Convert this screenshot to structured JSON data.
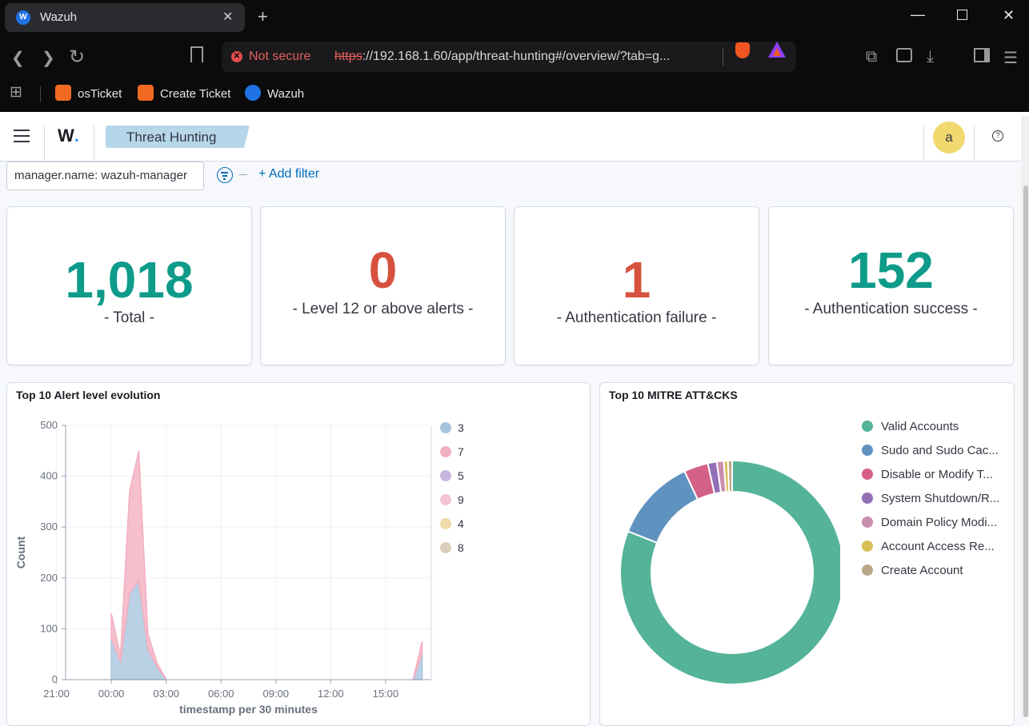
{
  "browser": {
    "tab_title": "Wazuh",
    "tab_favicon_letter": "W",
    "security_label": "Not secure",
    "url_scheme": "https",
    "url_rest": "://192.168.1.60/app/threat-hunting#/overview/?tab=g...",
    "bookmarks": [
      {
        "label": "osTicket",
        "color": "#f26a21"
      },
      {
        "label": "Create Ticket",
        "color": "#f26a21"
      },
      {
        "label": "Wazuh",
        "color": "#1f73e6"
      }
    ]
  },
  "app": {
    "logo_text": "W",
    "logo_dot": ".",
    "breadcrumb": "Threat Hunting",
    "avatar_letter": "a",
    "filter_pill": "manager.name: wazuh-manager",
    "add_filter": "+ Add filter"
  },
  "stats": [
    {
      "value": "1,018",
      "label": "- Total -",
      "color": "#0e9b8a"
    },
    {
      "value": "0",
      "label": "- Level 12 or above alerts -",
      "color": "#d6523f"
    },
    {
      "value": "1",
      "label": "- Authentication failure -",
      "color": "#d6523f"
    },
    {
      "value": "152",
      "label": "- Authentication success -",
      "color": "#0e9b8a"
    }
  ],
  "panels": {
    "alert_evolution": {
      "title": "Top 10 Alert level evolution"
    },
    "mitre": {
      "title": "Top 10 MITRE ATT&CKS"
    }
  },
  "chart_data": [
    {
      "type": "area",
      "title": "Top 10 Alert level evolution",
      "xlabel": "timestamp per 30 minutes",
      "ylabel": "Count",
      "ylim": [
        0,
        500
      ],
      "y_ticks": [
        "0",
        "100",
        "200",
        "300",
        "400",
        "500"
      ],
      "x_ticks": [
        "21:00",
        "00:00",
        "03:00",
        "06:00",
        "09:00",
        "12:00",
        "15:00"
      ],
      "stacked": true,
      "legend_position": "right",
      "series": [
        {
          "name": "3",
          "color": "#a7c4df",
          "values": [
            [
              0.0,
              80
            ],
            [
              0.5,
              35
            ],
            [
              1.0,
              170
            ],
            [
              1.5,
              195
            ],
            [
              2.0,
              60
            ],
            [
              2.5,
              25
            ],
            [
              3.0,
              0
            ],
            [
              16.5,
              0
            ],
            [
              17.0,
              50
            ]
          ]
        },
        {
          "name": "7",
          "color": "#f2afbf",
          "values": [
            [
              0.0,
              50
            ],
            [
              0.5,
              12
            ],
            [
              1.0,
              200
            ],
            [
              1.5,
              255
            ],
            [
              2.0,
              30
            ],
            [
              2.5,
              8
            ],
            [
              3.0,
              0
            ],
            [
              16.5,
              0
            ],
            [
              17.0,
              25
            ]
          ]
        },
        {
          "name": "5",
          "color": "#c7b4df",
          "values": []
        },
        {
          "name": "9",
          "color": "#f3c4d4",
          "values": []
        },
        {
          "name": "4",
          "color": "#eedba8",
          "values": []
        },
        {
          "name": "8",
          "color": "#dccdbb",
          "values": []
        }
      ]
    },
    {
      "type": "pie",
      "title": "Top 10 MITRE ATT&CKS",
      "donut": true,
      "legend_position": "right",
      "slices": [
        {
          "label": "Valid Accounts",
          "value": 81.0,
          "color": "#54b399"
        },
        {
          "label": "Sudo and Sudo Cac...",
          "value": 12.0,
          "color": "#6092c0"
        },
        {
          "label": "Disable or Modify T...",
          "value": 3.5,
          "color": "#d36086"
        },
        {
          "label": "System Shutdown/R...",
          "value": 1.3,
          "color": "#9170b8"
        },
        {
          "label": "Domain Policy Modi...",
          "value": 1.0,
          "color": "#ca8eae"
        },
        {
          "label": "Account Access Re...",
          "value": 0.6,
          "color": "#d6bf57"
        },
        {
          "label": "Create Account",
          "value": 0.6,
          "color": "#b9a888"
        }
      ]
    }
  ]
}
